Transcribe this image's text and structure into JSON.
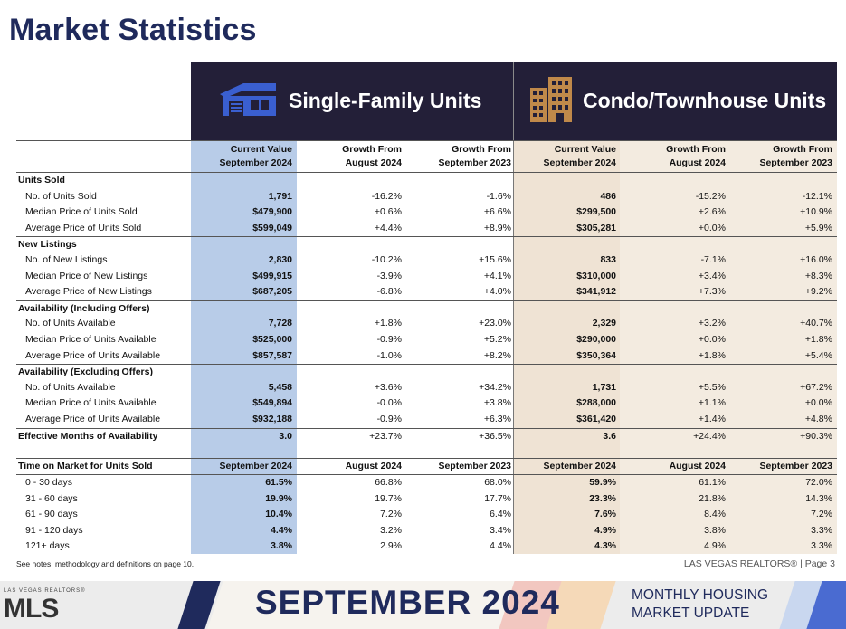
{
  "page_title": "Market Statistics",
  "sf_header": "Single-Family Units",
  "ct_header": "Condo/Townhouse Units",
  "col_headers": {
    "cur": [
      "Current Value",
      "September 2024"
    ],
    "aug": [
      "Growth From",
      "August 2024"
    ],
    "sep": [
      "Growth From",
      "September 2023"
    ]
  },
  "sections": [
    {
      "title": "Units Sold",
      "rows": [
        {
          "label": "No. of Units Sold",
          "sf": [
            "1,791",
            "-16.2%",
            "-1.6%"
          ],
          "ct": [
            "486",
            "-15.2%",
            "-12.1%"
          ]
        },
        {
          "label": "Median Price of Units Sold",
          "sf": [
            "$479,900",
            "+0.6%",
            "+6.6%"
          ],
          "ct": [
            "$299,500",
            "+2.6%",
            "+10.9%"
          ]
        },
        {
          "label": "Average Price of Units Sold",
          "sf": [
            "$599,049",
            "+4.4%",
            "+8.9%"
          ],
          "ct": [
            "$305,281",
            "+0.0%",
            "+5.9%"
          ]
        }
      ]
    },
    {
      "title": "New Listings",
      "rows": [
        {
          "label": "No. of New Listings",
          "sf": [
            "2,830",
            "-10.2%",
            "+15.6%"
          ],
          "ct": [
            "833",
            "-7.1%",
            "+16.0%"
          ]
        },
        {
          "label": "Median Price of New Listings",
          "sf": [
            "$499,915",
            "-3.9%",
            "+4.1%"
          ],
          "ct": [
            "$310,000",
            "+3.4%",
            "+8.3%"
          ]
        },
        {
          "label": "Average Price of New Listings",
          "sf": [
            "$687,205",
            "-6.8%",
            "+4.0%"
          ],
          "ct": [
            "$341,912",
            "+7.3%",
            "+9.2%"
          ]
        }
      ]
    },
    {
      "title": "Availability (Including Offers)",
      "rows": [
        {
          "label": "No. of Units Available",
          "sf": [
            "7,728",
            "+1.8%",
            "+23.0%"
          ],
          "ct": [
            "2,329",
            "+3.2%",
            "+40.7%"
          ]
        },
        {
          "label": "Median Price of Units Available",
          "sf": [
            "$525,000",
            "-0.9%",
            "+5.2%"
          ],
          "ct": [
            "$290,000",
            "+0.0%",
            "+1.8%"
          ]
        },
        {
          "label": "Average Price of Units Available",
          "sf": [
            "$857,587",
            "-1.0%",
            "+8.2%"
          ],
          "ct": [
            "$350,364",
            "+1.8%",
            "+5.4%"
          ]
        }
      ]
    },
    {
      "title": "Availability (Excluding Offers)",
      "rows": [
        {
          "label": "No. of Units Available",
          "sf": [
            "5,458",
            "+3.6%",
            "+34.2%"
          ],
          "ct": [
            "1,731",
            "+5.5%",
            "+67.2%"
          ]
        },
        {
          "label": "Median Price of Units Available",
          "sf": [
            "$549,894",
            "-0.0%",
            "+3.8%"
          ],
          "ct": [
            "$288,000",
            "+1.1%",
            "+0.0%"
          ]
        },
        {
          "label": "Average Price of Units Available",
          "sf": [
            "$932,188",
            "-0.9%",
            "+6.3%"
          ],
          "ct": [
            "$361,420",
            "+1.4%",
            "+4.8%"
          ]
        }
      ]
    }
  ],
  "effective": {
    "label": "Effective Months of Availability",
    "sf": [
      "3.0",
      "+23.7%",
      "+36.5%"
    ],
    "ct": [
      "3.6",
      "+24.4%",
      "+90.3%"
    ]
  },
  "tom": {
    "title": "Time on Market for Units Sold",
    "headers": [
      "September 2024",
      "August 2024",
      "September 2023",
      "September 2024",
      "August 2024",
      "September 2023"
    ],
    "rows": [
      {
        "label": "0 - 30 days",
        "sf": [
          "61.5%",
          "66.8%",
          "68.0%"
        ],
        "ct": [
          "59.9%",
          "61.1%",
          "72.0%"
        ]
      },
      {
        "label": "31 - 60 days",
        "sf": [
          "19.9%",
          "19.7%",
          "17.7%"
        ],
        "ct": [
          "23.3%",
          "21.8%",
          "14.3%"
        ]
      },
      {
        "label": "61 - 90 days",
        "sf": [
          "10.4%",
          "7.2%",
          "6.4%"
        ],
        "ct": [
          "7.6%",
          "8.4%",
          "7.2%"
        ]
      },
      {
        "label": "91 - 120 days",
        "sf": [
          "4.4%",
          "3.2%",
          "3.4%"
        ],
        "ct": [
          "4.9%",
          "3.8%",
          "3.3%"
        ]
      },
      {
        "label": "121+ days",
        "sf": [
          "3.8%",
          "2.9%",
          "4.4%"
        ],
        "ct": [
          "4.3%",
          "4.9%",
          "3.3%"
        ]
      }
    ]
  },
  "footnote": "See notes, methodology and definitions on page 10.",
  "page_note": "LAS VEGAS REALTORS® | Page 3",
  "footer": {
    "logo_small": "LAS VEGAS REALTORS®",
    "logo_big": "MLS",
    "banner": "SEPTEMBER 2024",
    "subtitle_line1": "MONTHLY HOUSING",
    "subtitle_line2": "MARKET UPDATE"
  },
  "colors": {
    "navy": "#1f2a5c",
    "header_bg": "#231f38",
    "sf_col": "#b8cce8",
    "ct_col": "#efe3d4",
    "sf_icon": "#3a5fd0",
    "ct_icon": "#c0894a"
  },
  "icons": {
    "sf": "house-icon",
    "ct": "building-icon"
  }
}
